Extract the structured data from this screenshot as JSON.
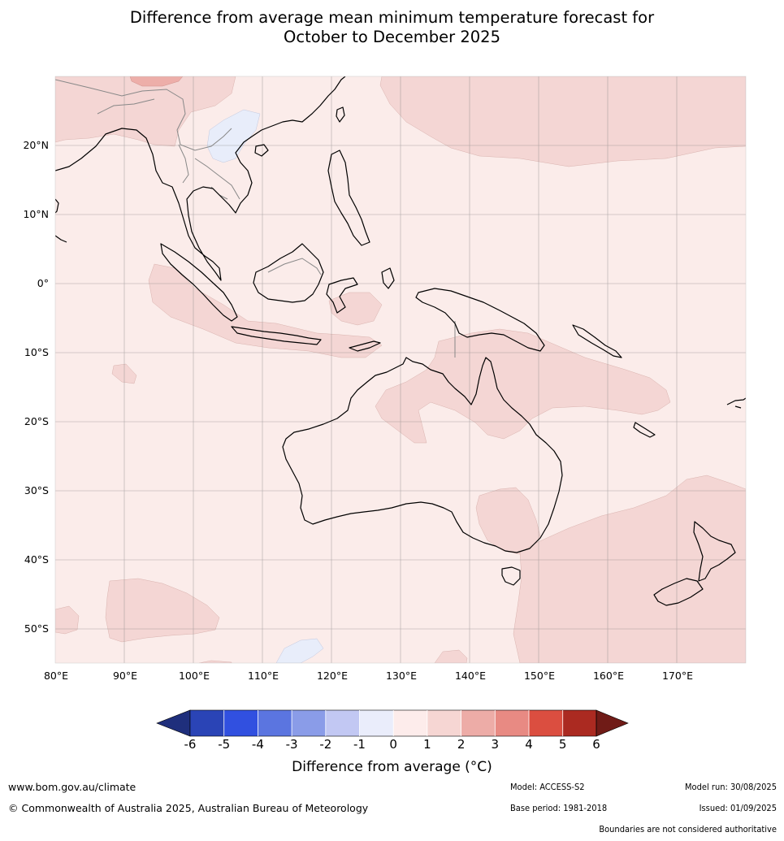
{
  "title": {
    "line1": "Difference from average mean minimum temperature forecast for",
    "line2": "October to December 2025"
  },
  "map": {
    "lat_labels": [
      "20°N",
      "10°N",
      "0°",
      "10°S",
      "20°S",
      "30°S",
      "40°S",
      "50°S"
    ],
    "lon_labels": [
      "80°E",
      "90°E",
      "100°E",
      "110°E",
      "120°E",
      "130°E",
      "140°E",
      "150°E",
      "160°E",
      "170°E"
    ],
    "colors": {
      "background_class_0_1": "#fbecea",
      "class_1_2": "#f4d6d4",
      "class_2_3": "#edaea9",
      "class_minus1_0": "#e8edfa",
      "coastline": "#000000",
      "border": "#888888",
      "grid": "#8f8a8a"
    }
  },
  "colorbar": {
    "labels": [
      "-6",
      "-5",
      "-4",
      "-3",
      "-2",
      "-1",
      "0",
      "1",
      "2",
      "3",
      "4",
      "5",
      "6"
    ],
    "colors": [
      "#1f2f7c",
      "#2a44b6",
      "#3150e0",
      "#5b75e0",
      "#8a9ce8",
      "#c2c8f3",
      "#eaedfb",
      "#fdeceb",
      "#f6d6d3",
      "#edaca7",
      "#e88a83",
      "#db4e40",
      "#ab2a21",
      "#701b17"
    ],
    "title": "Difference from average (°C)"
  },
  "footer": {
    "website": "www.bom.gov.au/climate",
    "copyright": "© Commonwealth of Australia 2025, Australian Bureau of Meteorology",
    "model": "Model: ACCESS-S2",
    "model_run": "Model run: 30/08/2025",
    "base_period": "Base period: 1981-2018",
    "issued": "Issued: 01/09/2025",
    "disclaimer": "Boundaries are not considered authoritative"
  }
}
